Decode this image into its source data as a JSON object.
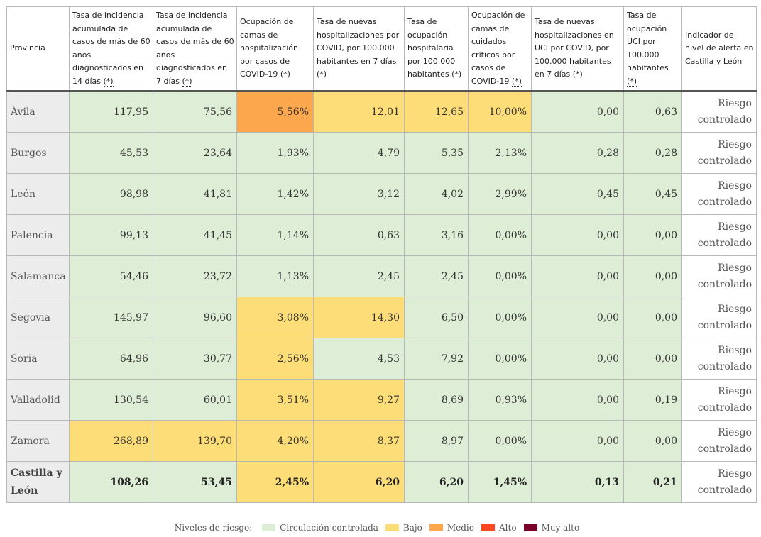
{
  "columns": [
    "Provincia",
    "Tasa de incidencia acumulada de casos de más de 60 años diagnosticados en 14 días",
    "Tasa de incidencia acumulada de casos de más de 60 años diagnosticados en 7 días",
    "Ocupación de camas de hospitalización por casos de COVID-19",
    "Tasa de nuevas hospitalizaciones por COVID, por 100.000 habitantes en 7 días",
    "Tasa de ocupación hospitalaria por 100.000 habitantes",
    "Ocupación de camas de cuidados críticos por casos de COVID-19",
    "Tasa de nuevas hospitalizaciones en UCI por COVID, por 100.000 habitantes en 7 días",
    "Tasa de ocupación UCI por 100.000 habitantes",
    "Indicador de nivel de alerta en Castilla y León"
  ],
  "ref_mark": "(*)",
  "colors": {
    "controlada": "#deedd6",
    "bajo": "#fddd78",
    "medio": "#fca74e",
    "alto": "#f9481e",
    "muy_alto": "#7b0129"
  },
  "rows": [
    {
      "province": "Ávila",
      "values": [
        "117,95",
        "75,56",
        "5,56%",
        "12,01",
        "12,65",
        "10,00%",
        "0,00",
        "0,63"
      ],
      "levels": [
        "controlada",
        "controlada",
        "medio",
        "bajo",
        "bajo",
        "bajo",
        "controlada",
        "controlada"
      ],
      "alert": "Riesgo controlado"
    },
    {
      "province": "Burgos",
      "values": [
        "45,53",
        "23,64",
        "1,93%",
        "4,79",
        "5,35",
        "2,13%",
        "0,28",
        "0,28"
      ],
      "levels": [
        "controlada",
        "controlada",
        "controlada",
        "controlada",
        "controlada",
        "controlada",
        "controlada",
        "controlada"
      ],
      "alert": "Riesgo controlado"
    },
    {
      "province": "León",
      "values": [
        "98,98",
        "41,81",
        "1,42%",
        "3,12",
        "4,02",
        "2,99%",
        "0,45",
        "0,45"
      ],
      "levels": [
        "controlada",
        "controlada",
        "controlada",
        "controlada",
        "controlada",
        "controlada",
        "controlada",
        "controlada"
      ],
      "alert": "Riesgo controlado"
    },
    {
      "province": "Palencia",
      "values": [
        "99,13",
        "41,45",
        "1,14%",
        "0,63",
        "3,16",
        "0,00%",
        "0,00",
        "0,00"
      ],
      "levels": [
        "controlada",
        "controlada",
        "controlada",
        "controlada",
        "controlada",
        "controlada",
        "controlada",
        "controlada"
      ],
      "alert": "Riesgo controlado"
    },
    {
      "province": "Salamanca",
      "values": [
        "54,46",
        "23,72",
        "1,13%",
        "2,45",
        "2,45",
        "0,00%",
        "0,00",
        "0,00"
      ],
      "levels": [
        "controlada",
        "controlada",
        "controlada",
        "controlada",
        "controlada",
        "controlada",
        "controlada",
        "controlada"
      ],
      "alert": "Riesgo controlado"
    },
    {
      "province": "Segovia",
      "values": [
        "145,97",
        "96,60",
        "3,08%",
        "14,30",
        "6,50",
        "0,00%",
        "0,00",
        "0,00"
      ],
      "levels": [
        "controlada",
        "controlada",
        "bajo",
        "bajo",
        "controlada",
        "controlada",
        "controlada",
        "controlada"
      ],
      "alert": "Riesgo controlado"
    },
    {
      "province": "Soria",
      "values": [
        "64,96",
        "30,77",
        "2,56%",
        "4,53",
        "7,92",
        "0,00%",
        "0,00",
        "0,00"
      ],
      "levels": [
        "controlada",
        "controlada",
        "bajo",
        "controlada",
        "controlada",
        "controlada",
        "controlada",
        "controlada"
      ],
      "alert": "Riesgo controlado"
    },
    {
      "province": "Valladolid",
      "values": [
        "130,54",
        "60,01",
        "3,51%",
        "9,27",
        "8,69",
        "0,93%",
        "0,00",
        "0,19"
      ],
      "levels": [
        "controlada",
        "controlada",
        "bajo",
        "bajo",
        "controlada",
        "controlada",
        "controlada",
        "controlada"
      ],
      "alert": "Riesgo controlado"
    },
    {
      "province": "Zamora",
      "values": [
        "268,89",
        "139,70",
        "4,20%",
        "8,37",
        "8,97",
        "0,00%",
        "0,00",
        "0,00"
      ],
      "levels": [
        "bajo",
        "bajo",
        "bajo",
        "bajo",
        "controlada",
        "controlada",
        "controlada",
        "controlada"
      ],
      "alert": "Riesgo controlado"
    }
  ],
  "total": {
    "province": "Castilla y León",
    "values": [
      "108,26",
      "53,45",
      "2,45%",
      "6,20",
      "6,20",
      "1,45%",
      "0,13",
      "0,21"
    ],
    "levels": [
      "controlada",
      "controlada",
      "bajo",
      "bajo",
      "controlada",
      "controlada",
      "controlada",
      "controlada"
    ],
    "alert": "Riesgo controlado"
  },
  "legend": {
    "title": "Niveles de riesgo:",
    "items": [
      {
        "key": "controlada",
        "label": "Circulación controlada"
      },
      {
        "key": "bajo",
        "label": "Bajo"
      },
      {
        "key": "medio",
        "label": "Medio"
      },
      {
        "key": "alto",
        "label": "Alto"
      },
      {
        "key": "muy_alto",
        "label": "Muy alto"
      }
    ]
  }
}
